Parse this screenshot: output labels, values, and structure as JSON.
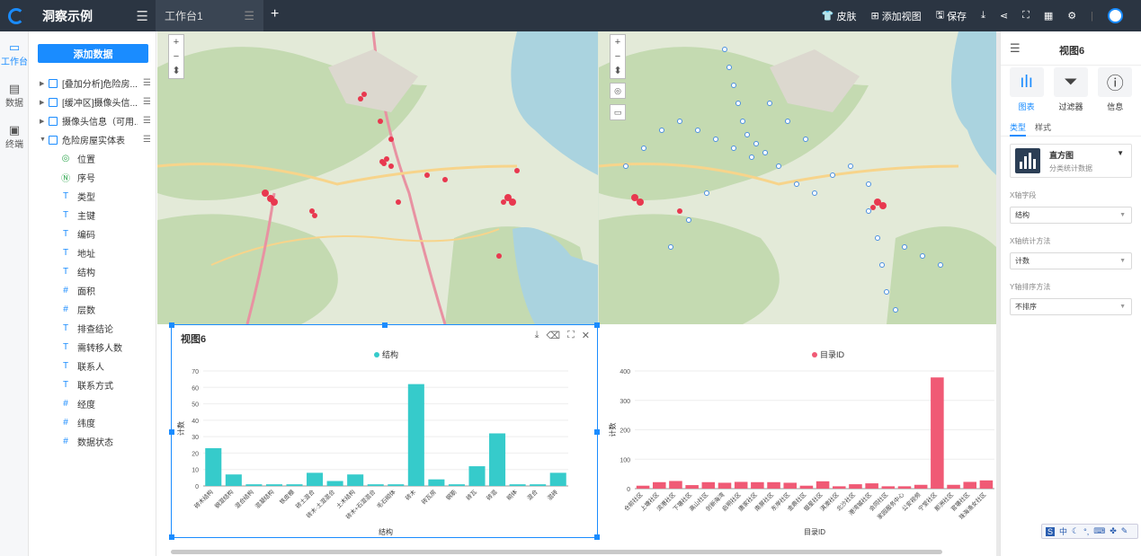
{
  "app": {
    "title": "洞察示例"
  },
  "tabs": [
    {
      "label": "工作台1"
    }
  ],
  "toolbar": {
    "skin": "皮肤",
    "add_view": "添加视图",
    "save": "保存"
  },
  "rail": [
    {
      "label": "工作台",
      "icon": "workbench-icon",
      "active": true
    },
    {
      "label": "数据",
      "icon": "data-icon",
      "active": false
    },
    {
      "label": "终端",
      "icon": "terminal-icon",
      "active": false
    }
  ],
  "panel": {
    "add_button": "添加数据",
    "datasets": [
      {
        "label": "[叠加分析]危险房...",
        "expanded": false
      },
      {
        "label": "[缓冲区]摄像头信...",
        "expanded": false
      },
      {
        "label": "摄像头信息（可用...",
        "expanded": false
      },
      {
        "label": "危险房屋实体表",
        "expanded": true
      }
    ],
    "fields": [
      {
        "label": "位置",
        "type": "geo"
      },
      {
        "label": "序号",
        "type": "id"
      },
      {
        "label": "类型",
        "type": "T"
      },
      {
        "label": "主键",
        "type": "T"
      },
      {
        "label": "编码",
        "type": "T"
      },
      {
        "label": "地址",
        "type": "T"
      },
      {
        "label": "结构",
        "type": "T"
      },
      {
        "label": "面积",
        "type": "#"
      },
      {
        "label": "层数",
        "type": "#"
      },
      {
        "label": "排查结论",
        "type": "T"
      },
      {
        "label": "需转移人数",
        "type": "T"
      },
      {
        "label": "联系人",
        "type": "T"
      },
      {
        "label": "联系方式",
        "type": "T"
      },
      {
        "label": "经度",
        "type": "#"
      },
      {
        "label": "纬度",
        "type": "#"
      },
      {
        "label": "数据状态",
        "type": "#"
      }
    ]
  },
  "chart_data": [
    {
      "type": "bar",
      "title": "视图6",
      "legend": "结构",
      "xlabel": "结构",
      "ylabel": "计数",
      "color": "#36cbcb",
      "ylim": [
        0,
        70
      ],
      "yticks": [
        0,
        10,
        20,
        30,
        40,
        50,
        60,
        70
      ],
      "categories": [
        "砖木结构",
        "钢混结构",
        "混合结构",
        "混凝结构",
        "铁皮棚",
        "砖土混合",
        "砖木·土混混合",
        "土木结构",
        "砖木+石混混合",
        "毛石砌体",
        "砖木",
        "砖瓦房",
        "钢筋",
        "砖瓦",
        "砖混",
        "砌体",
        "混合",
        "混砖"
      ],
      "values": [
        23,
        7,
        1,
        1,
        1,
        8,
        3,
        7,
        1,
        1,
        62,
        4,
        1,
        12,
        32,
        1,
        1,
        8
      ]
    },
    {
      "type": "bar",
      "legend": "目录ID",
      "xlabel": "目录ID",
      "ylabel": "计数",
      "color": "#f05a75",
      "ylim": [
        0,
        400
      ],
      "yticks": [
        0,
        100,
        200,
        300,
        400
      ],
      "categories": [
        "仓前社区",
        "上塘社区",
        "滨港社区",
        "下塘社区",
        "高山社区",
        "创新海湾",
        "启明社区",
        "唐家社区",
        "南屏社区",
        "东岸社区",
        "金鼎社区",
        "银星社区",
        "淇澳社区",
        "北沙社区",
        "港湾城社区",
        "会同社区",
        "家园服务中心",
        "公安视频",
        "宁堂社区",
        "那洲社区",
        "官塘社区",
        "珠海渔女社区"
      ],
      "values": [
        10,
        22,
        26,
        12,
        22,
        20,
        23,
        22,
        22,
        20,
        10,
        25,
        8,
        15,
        18,
        8,
        8,
        13,
        378,
        13,
        23,
        28
      ]
    }
  ],
  "right": {
    "menu_icon": "menu-icon",
    "view_title": "视图6",
    "tabs": [
      {
        "label": "图表",
        "icon": "chart-icon",
        "active": true
      },
      {
        "label": "过滤器",
        "icon": "filter-icon",
        "active": false
      },
      {
        "label": "信息",
        "icon": "info-icon",
        "active": false
      }
    ],
    "subtabs": [
      "类型",
      "样式"
    ],
    "chart_type": {
      "name": "直方图",
      "desc": "分类统计数据"
    },
    "x_field_label": "X轴字段",
    "x_field_value": "结构",
    "x_method_label": "X轴统计方法",
    "x_method_value": "计数",
    "y_sort_label": "Y轴排序方法",
    "y_sort_value": "不排序"
  },
  "ime": {
    "mode": "中"
  }
}
